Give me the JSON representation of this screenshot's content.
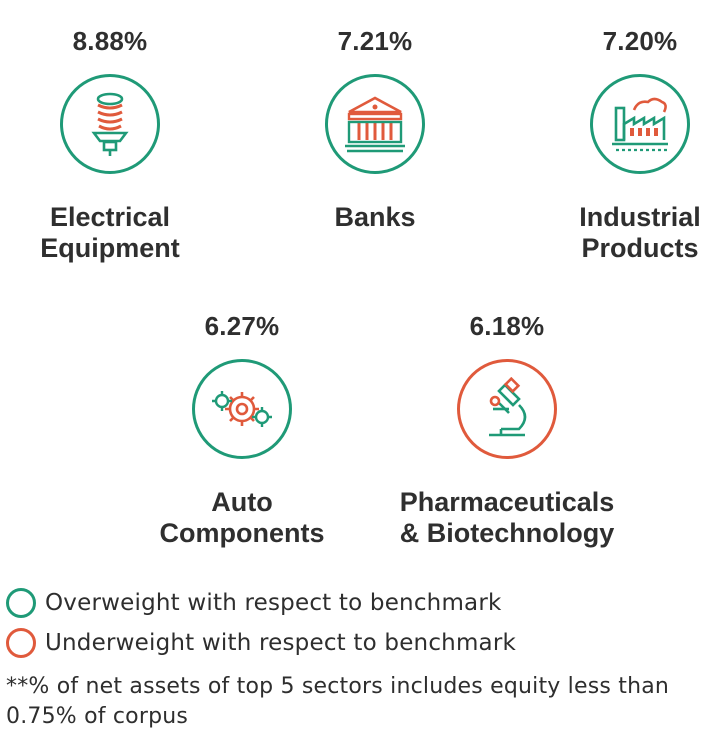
{
  "sectors": [
    {
      "percent": "8.88%",
      "name_line1": "Electrical",
      "name_line2": "Equipment",
      "weight": "overweight",
      "icon": "lightbulb-icon"
    },
    {
      "percent": "7.21%",
      "name_line1": "Banks",
      "name_line2": "",
      "weight": "overweight",
      "icon": "bank-building-icon"
    },
    {
      "percent": "7.20%",
      "name_line1": "Industrial",
      "name_line2": "Products",
      "weight": "overweight",
      "icon": "factory-icon"
    },
    {
      "percent": "6.27%",
      "name_line1": "Auto",
      "name_line2": "Components",
      "weight": "overweight",
      "icon": "gears-icon"
    },
    {
      "percent": "6.18%",
      "name_line1": "Pharmaceuticals",
      "name_line2": "& Biotechnology",
      "weight": "underweight",
      "icon": "microscope-icon"
    }
  ],
  "legend": {
    "overweight": "Overweight with respect to benchmark",
    "underweight": "Underweight with respect to benchmark"
  },
  "footnote": "**% of net assets of top 5 sectors includes equity less than 0.75% of corpus",
  "colors": {
    "overweight": "#1f9a77",
    "underweight": "#e05a3c",
    "text": "#2f2f2f"
  }
}
